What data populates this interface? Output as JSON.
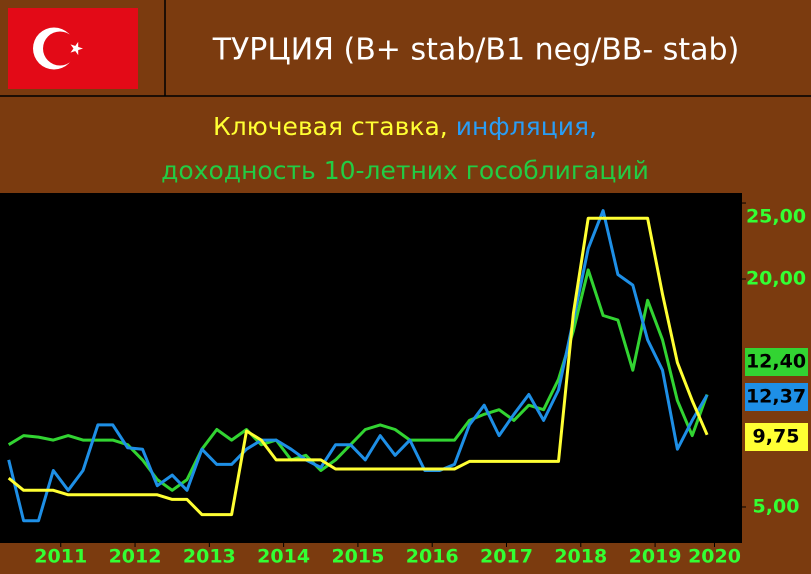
{
  "chart_data": {
    "type": "line",
    "title": "ТУРЦИЯ (B+ stab/B1 neg/BB- stab)",
    "x": [
      2010.8,
      2011.0,
      2011.2,
      2011.4,
      2011.6,
      2011.8,
      2012.0,
      2012.2,
      2012.4,
      2012.6,
      2012.8,
      2013.0,
      2013.2,
      2013.4,
      2013.6,
      2013.8,
      2014.0,
      2014.2,
      2014.4,
      2014.6,
      2014.8,
      2015.0,
      2015.2,
      2015.4,
      2015.6,
      2015.8,
      2016.0,
      2016.2,
      2016.4,
      2016.6,
      2016.8,
      2017.0,
      2017.2,
      2017.4,
      2017.6,
      2017.8,
      2018.0,
      2018.2,
      2018.4,
      2018.6,
      2018.8,
      2019.0,
      2019.2,
      2019.4,
      2019.6,
      2019.8,
      2020.0,
      2020.2
    ],
    "series": [
      {
        "name": "Ключевая ставка,",
        "color": "#ffff33",
        "end_label": "9,75",
        "values": [
          6.9,
          6.1,
          6.1,
          6.1,
          5.8,
          5.8,
          5.8,
          5.8,
          5.8,
          5.8,
          5.8,
          5.5,
          5.5,
          4.5,
          4.5,
          4.5,
          10.0,
          9.4,
          8.1,
          8.1,
          8.1,
          8.1,
          7.5,
          7.5,
          7.5,
          7.5,
          7.5,
          7.5,
          7.5,
          7.5,
          7.5,
          8.0,
          8.0,
          8.0,
          8.0,
          8.0,
          8.0,
          8.0,
          17.75,
          24,
          24,
          24,
          24,
          24,
          19.0,
          14.5,
          12.0,
          9.75
        ]
      },
      {
        "name": "инфляция,",
        "color": "#1e8fe6",
        "end_label": "12,37",
        "values": [
          8.1,
          4.1,
          4.1,
          7.4,
          6.1,
          7.4,
          10.4,
          10.4,
          8.9,
          8.8,
          6.4,
          7.1,
          6.1,
          8.8,
          7.8,
          7.8,
          8.8,
          9.4,
          9.4,
          8.8,
          8.1,
          7.6,
          9.1,
          9.1,
          8.1,
          9.7,
          8.4,
          9.4,
          7.4,
          7.4,
          7.8,
          10.4,
          11.7,
          9.7,
          11.1,
          12.4,
          10.7,
          12.7,
          17.3,
          22.0,
          24.5,
          20.3,
          19.6,
          16.0,
          14.0,
          8.8,
          10.7,
          12.37
        ]
      },
      {
        "name": "доходность 10-летних гособлигаций",
        "color": "#32d432",
        "end_label": "12,40",
        "values": [
          9.1,
          9.7,
          9.6,
          9.4,
          9.7,
          9.4,
          9.4,
          9.4,
          9.1,
          8.1,
          6.8,
          6.1,
          6.8,
          8.8,
          10.1,
          9.4,
          10.1,
          9.1,
          9.4,
          8.1,
          8.4,
          7.4,
          8.1,
          9.1,
          10.1,
          10.4,
          10.1,
          9.4,
          9.4,
          9.4,
          9.4,
          10.7,
          11.1,
          11.4,
          10.7,
          11.7,
          11.4,
          13.4,
          16.6,
          20.6,
          17.6,
          17.3,
          14.0,
          18.6,
          16.0,
          12.0,
          9.7,
          12.4
        ]
      }
    ],
    "xlim": [
      2010.79,
      2020.67
    ],
    "xticks": [
      {
        "value": 2011.5,
        "label": "2011"
      },
      {
        "value": 2012.5,
        "label": "2012"
      },
      {
        "value": 2013.5,
        "label": "2013"
      },
      {
        "value": 2014.5,
        "label": "2014"
      },
      {
        "value": 2015.5,
        "label": "2015"
      },
      {
        "value": 2016.5,
        "label": "2016"
      },
      {
        "value": 2017.5,
        "label": "2017"
      },
      {
        "value": 2018.5,
        "label": "2018"
      },
      {
        "value": 2019.5,
        "label": "2019"
      },
      {
        "value": 2020.3,
        "label": "2020"
      }
    ],
    "ylim": [
      2.63,
      25.66
    ],
    "yticks": [
      {
        "value": 5,
        "label": "5,00"
      },
      {
        "value": 20,
        "label": "20,00"
      },
      {
        "value": 25,
        "label": "25,00"
      }
    ]
  }
}
